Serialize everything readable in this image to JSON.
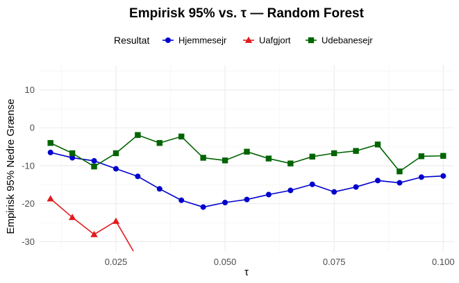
{
  "chart_data": {
    "type": "line",
    "title": "Empirisk 95% vs. τ — Random Forest",
    "xlabel": "τ",
    "ylabel": "Empirisk 95% Nedre Grænse",
    "xlim": [
      0.0075,
      0.1025
    ],
    "ylim": [
      -32.5,
      16.5
    ],
    "x_ticks": [
      0.025,
      0.05,
      0.075,
      0.1
    ],
    "x_tick_labels": [
      "0.025",
      "0.050",
      "0.075",
      "0.100"
    ],
    "y_ticks": [
      -30,
      -20,
      -10,
      0,
      10
    ],
    "y_tick_labels": [
      "-30",
      "-20",
      "-10",
      "0",
      "10"
    ],
    "grid": true,
    "legend": {
      "title": "Resultat",
      "position": "top"
    },
    "series": [
      {
        "name": "Hjemmesejr",
        "color": "#0000cd",
        "marker": "circle",
        "x": [
          0.01,
          0.015,
          0.02,
          0.025,
          0.03,
          0.035,
          0.04,
          0.045,
          0.05,
          0.055,
          0.06,
          0.065,
          0.07,
          0.075,
          0.08,
          0.085,
          0.09,
          0.095,
          0.1
        ],
        "y": [
          -6.5,
          -7.9,
          -8.7,
          -10.8,
          -12.8,
          -16.1,
          -19.1,
          -20.9,
          -19.7,
          -18.9,
          -17.6,
          -16.5,
          -14.9,
          -16.9,
          -15.6,
          -13.9,
          -14.5,
          -13.0,
          -12.7
        ]
      },
      {
        "name": "Uafgjort",
        "color": "#e31a1c",
        "marker": "triangle",
        "x": [
          0.01,
          0.015,
          0.02,
          0.025,
          0.03
        ],
        "y": [
          -18.7,
          -23.6,
          -28.1,
          -24.6,
          -34.5
        ]
      },
      {
        "name": "Udebanesejr",
        "color": "#006400",
        "marker": "square",
        "x": [
          0.01,
          0.015,
          0.02,
          0.025,
          0.03,
          0.035,
          0.04,
          0.045,
          0.05,
          0.055,
          0.06,
          0.065,
          0.07,
          0.075,
          0.08,
          0.085,
          0.09,
          0.095,
          0.1
        ],
        "y": [
          -4.0,
          -6.7,
          -10.2,
          -6.7,
          -1.9,
          -4.0,
          -2.3,
          -7.9,
          -8.6,
          -6.3,
          -8.1,
          -9.4,
          -7.6,
          -6.7,
          -6.1,
          -4.4,
          -11.5,
          -7.5,
          -7.4
        ]
      }
    ]
  }
}
